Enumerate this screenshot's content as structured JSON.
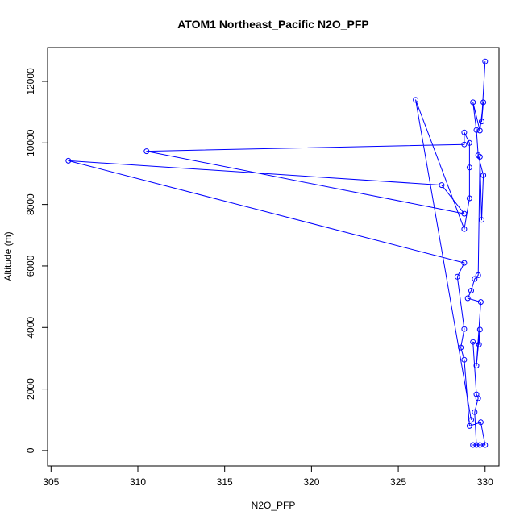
{
  "chart_data": {
    "type": "line",
    "title": "ATOM1 Northeast_Pacific N2O_PFP",
    "xlabel": "N2O_PFP",
    "ylabel": "Altitude (m)",
    "xlim": [
      304.8,
      330.8
    ],
    "ylim": [
      -500,
      13100
    ],
    "xticks": [
      305,
      310,
      315,
      320,
      325,
      330
    ],
    "yticks": [
      0,
      2000,
      4000,
      6000,
      8000,
      10000,
      12000
    ],
    "grid": false,
    "legend": "none",
    "series": [
      {
        "color": "#0000ff",
        "marker": "open-circle",
        "points": [
          [
            330.0,
            12650
          ],
          [
            329.8,
            10700
          ],
          [
            329.9,
            11320
          ],
          [
            329.7,
            10400
          ],
          [
            329.3,
            11320
          ],
          [
            329.5,
            10420
          ],
          [
            329.6,
            9600
          ],
          [
            329.9,
            8950
          ],
          [
            329.8,
            7500
          ],
          [
            329.7,
            9550
          ],
          [
            329.6,
            5700
          ],
          [
            329.4,
            5580
          ],
          [
            329.2,
            5200
          ],
          [
            329.0,
            4950
          ],
          [
            329.75,
            4830
          ],
          [
            329.5,
            2760
          ],
          [
            329.7,
            3930
          ],
          [
            329.65,
            3450
          ],
          [
            329.3,
            3530
          ],
          [
            329.5,
            1830
          ],
          [
            329.6,
            1700
          ],
          [
            329.4,
            1250
          ],
          [
            329.5,
            180
          ],
          [
            329.3,
            180
          ],
          [
            329.7,
            180
          ],
          [
            330.0,
            180
          ],
          [
            329.75,
            920
          ],
          [
            329.1,
            800
          ],
          [
            328.8,
            2950
          ],
          [
            328.6,
            3350
          ],
          [
            328.8,
            3950
          ],
          [
            328.4,
            5650
          ],
          [
            328.8,
            6100
          ],
          [
            306.0,
            9420
          ],
          [
            327.5,
            8630
          ],
          [
            328.8,
            7700
          ],
          [
            310.5,
            9730
          ],
          [
            328.8,
            9950
          ],
          [
            328.8,
            10340
          ],
          [
            329.1,
            10000
          ],
          [
            329.1,
            9200
          ],
          [
            329.1,
            8200
          ],
          [
            328.8,
            7200
          ],
          [
            326.0,
            11400
          ],
          [
            329.2,
            1000
          ]
        ]
      }
    ]
  }
}
